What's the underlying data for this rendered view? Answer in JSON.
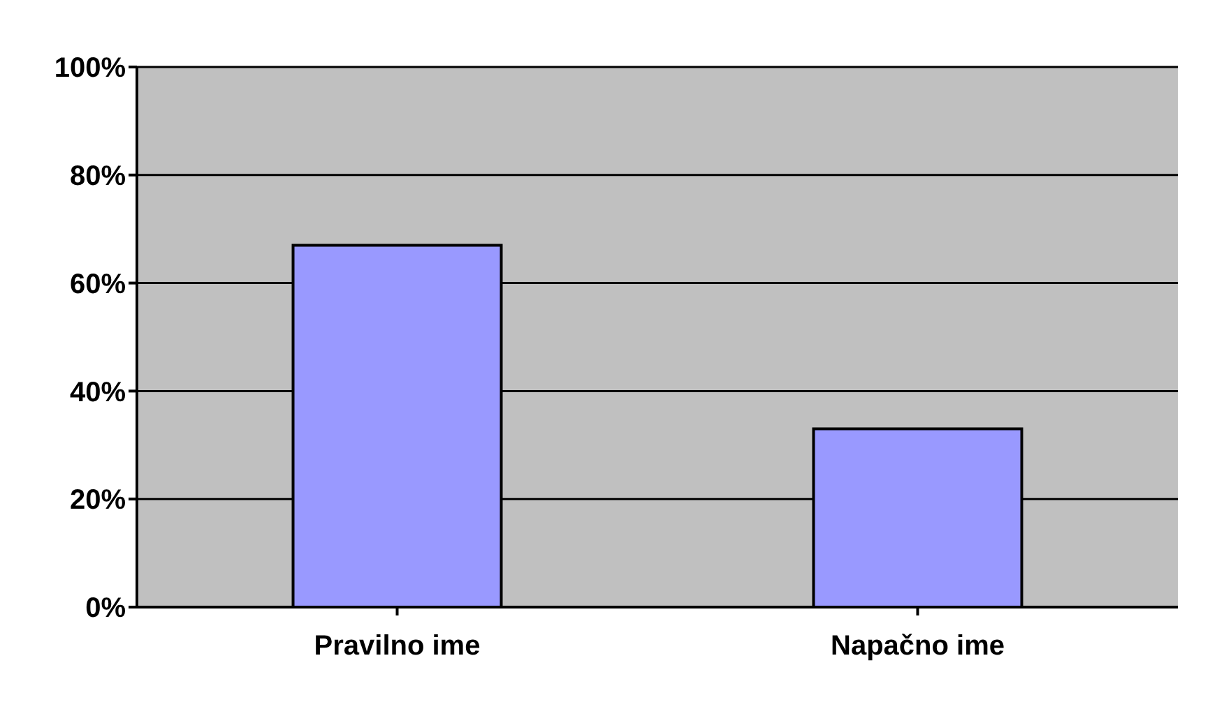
{
  "chart_data": {
    "type": "bar",
    "categories": [
      "Pravilno ime",
      "Napačno ime"
    ],
    "values": [
      67,
      33
    ],
    "color": "#9999ff",
    "ylim": [
      0,
      100
    ],
    "yticks": [
      {
        "value": 0,
        "label": "0%"
      },
      {
        "value": 20,
        "label": "20%"
      },
      {
        "value": 40,
        "label": "40%"
      },
      {
        "value": 60,
        "label": "60%"
      },
      {
        "value": 80,
        "label": "80%"
      },
      {
        "value": 100,
        "label": "100%"
      }
    ],
    "grid": "y"
  }
}
